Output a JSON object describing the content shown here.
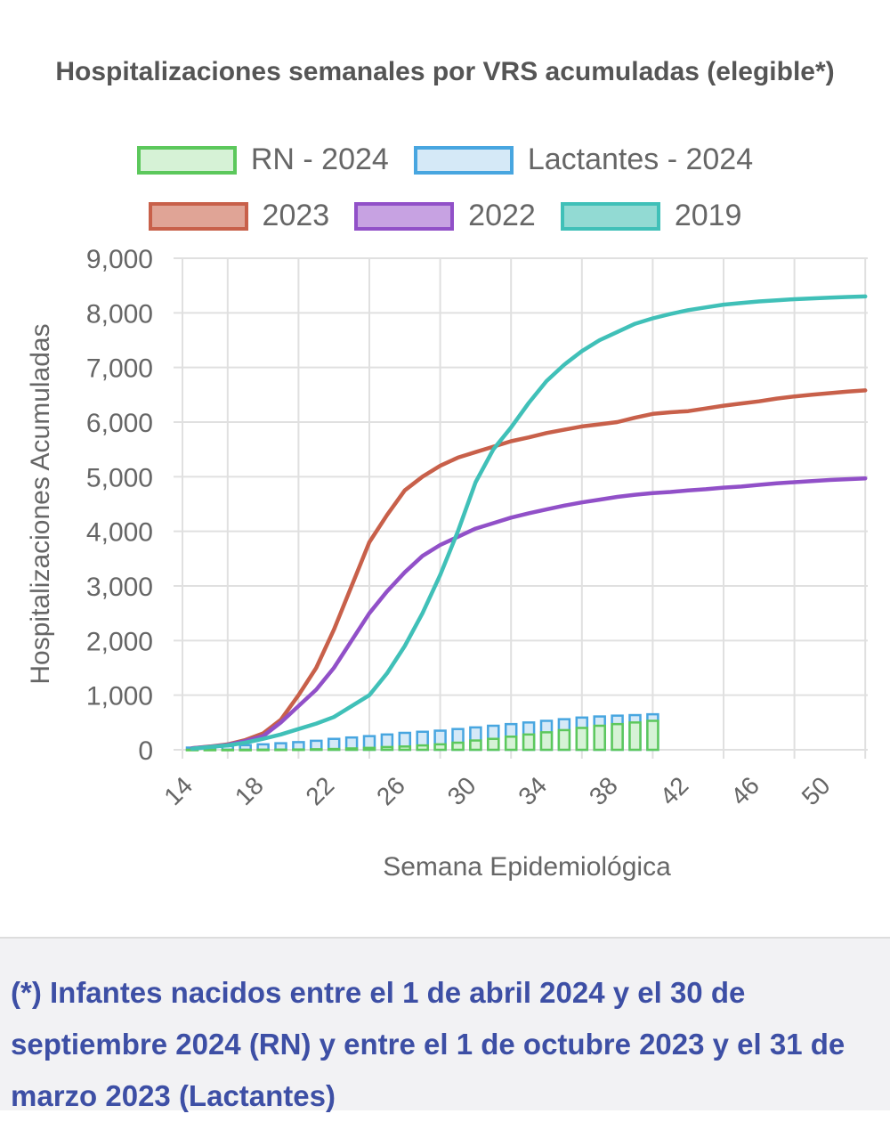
{
  "chart_data": {
    "type": "line",
    "title": "Hospitalizaciones semanales por VRS acumuladas (elegible*)",
    "xlabel": "Semana Epidemiológica",
    "ylabel": "Hospitalizaciones Acumuladas",
    "ylim": [
      0,
      9000
    ],
    "xlim": [
      14,
      52
    ],
    "yticks": [
      "0",
      "1,000",
      "2,000",
      "3,000",
      "4,000",
      "5,000",
      "6,000",
      "7,000",
      "8,000",
      "9,000"
    ],
    "xticks": [
      "14",
      "18",
      "22",
      "26",
      "30",
      "34",
      "38",
      "42",
      "46",
      "50"
    ],
    "grid": true,
    "legend_position": "top",
    "x": [
      14,
      15,
      16,
      17,
      18,
      19,
      20,
      21,
      22,
      23,
      24,
      25,
      26,
      27,
      28,
      29,
      30,
      31,
      32,
      33,
      34,
      35,
      36,
      37,
      38,
      39,
      40,
      41,
      42,
      43,
      44,
      45,
      46,
      47,
      48,
      49,
      50,
      51,
      52
    ],
    "bar_series": [
      {
        "name": "RN - 2024",
        "type": "bar",
        "color": "#5cc85c",
        "fill": "#d6f2d6",
        "x": [
          14,
          15,
          16,
          17,
          18,
          19,
          20,
          21,
          22,
          23,
          24,
          25,
          26,
          27,
          28,
          29,
          30,
          31,
          32,
          33,
          34,
          35,
          36,
          37,
          38,
          39,
          40
        ],
        "values": [
          0,
          0,
          0,
          0,
          2,
          3,
          5,
          10,
          15,
          25,
          35,
          50,
          60,
          80,
          100,
          130,
          170,
          200,
          240,
          280,
          320,
          360,
          400,
          440,
          470,
          500,
          530
        ]
      },
      {
        "name": "Lactantes - 2024",
        "type": "bar",
        "color": "#48a6e0",
        "fill": "#d5e9f7",
        "x": [
          14,
          15,
          16,
          17,
          18,
          19,
          20,
          21,
          22,
          23,
          24,
          25,
          26,
          27,
          28,
          29,
          30,
          31,
          32,
          33,
          34,
          35,
          36,
          37,
          38,
          39,
          40
        ],
        "values": [
          40,
          55,
          70,
          85,
          100,
          120,
          140,
          165,
          200,
          225,
          250,
          280,
          310,
          330,
          350,
          380,
          410,
          440,
          470,
          500,
          530,
          560,
          590,
          610,
          625,
          635,
          650
        ]
      }
    ],
    "series": [
      {
        "name": "2023",
        "color": "#c8604a",
        "fill": "#e0a496",
        "values": [
          30,
          60,
          100,
          180,
          300,
          550,
          1000,
          1500,
          2200,
          3000,
          3800,
          4300,
          4750,
          5000,
          5200,
          5350,
          5450,
          5550,
          5650,
          5720,
          5800,
          5860,
          5920,
          5960,
          6000,
          6080,
          6150,
          6180,
          6200,
          6250,
          6300,
          6340,
          6380,
          6430,
          6470,
          6500,
          6530,
          6560,
          6580
        ]
      },
      {
        "name": "2022",
        "color": "#9150c8",
        "fill": "#c7a2e2",
        "values": [
          30,
          55,
          90,
          160,
          250,
          500,
          800,
          1100,
          1500,
          2000,
          2500,
          2900,
          3250,
          3550,
          3750,
          3900,
          4050,
          4150,
          4250,
          4330,
          4400,
          4470,
          4530,
          4580,
          4630,
          4670,
          4700,
          4720,
          4750,
          4770,
          4800,
          4820,
          4850,
          4880,
          4900,
          4920,
          4940,
          4955,
          4970
        ]
      },
      {
        "name": "2019",
        "color": "#40c0b8",
        "fill": "#92dad3",
        "values": [
          20,
          50,
          80,
          130,
          200,
          280,
          380,
          480,
          600,
          800,
          1000,
          1400,
          1900,
          2500,
          3200,
          4000,
          4900,
          5500,
          5900,
          6350,
          6750,
          7050,
          7300,
          7500,
          7650,
          7800,
          7900,
          7980,
          8050,
          8100,
          8150,
          8180,
          8210,
          8230,
          8250,
          8265,
          8280,
          8290,
          8300
        ]
      }
    ]
  },
  "footnote": "(*) Infantes nacidos entre el 1 de abril 2024 y el 30 de septiembre 2024 (RN) y entre el 1 de octubre 2023 y el 31 de marzo 2023 (Lactantes)"
}
